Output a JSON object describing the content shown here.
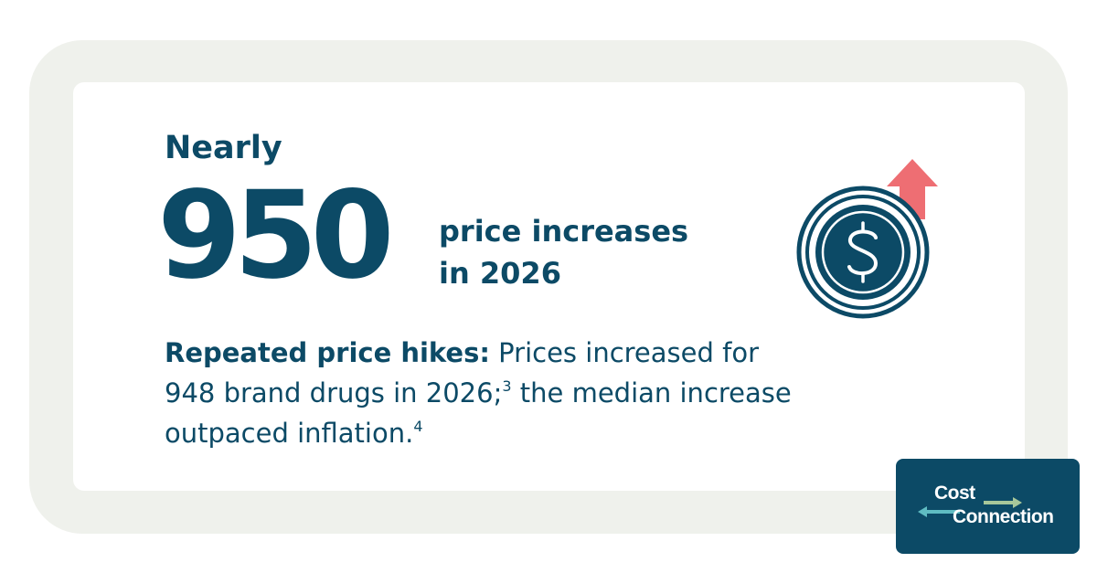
{
  "headline": {
    "eyebrow": "Nearly",
    "number": "950",
    "caption_line_1": "price increases",
    "caption_line_2": "in 2026"
  },
  "body": {
    "lead": "Repeated price hikes:",
    "line_1_rest": " Prices increased for",
    "line_2": "948 brand drugs in 2026;",
    "footnote_1": "3",
    "line_2_rest": " the median increase",
    "line_3": "outpaced inflation.",
    "footnote_2": "4"
  },
  "logo": {
    "word_1": "Cost",
    "word_2": "Connection"
  },
  "icons": {
    "coin": "dollar-coin-icon",
    "arrow": "arrow-up-icon"
  },
  "colors": {
    "primary": "#0c4a66",
    "accent_arrow": "#ee6e73",
    "frame": "#eff1ec",
    "logo_arrow_left": "#5fbcc2",
    "logo_arrow_right": "#a7c79a"
  }
}
